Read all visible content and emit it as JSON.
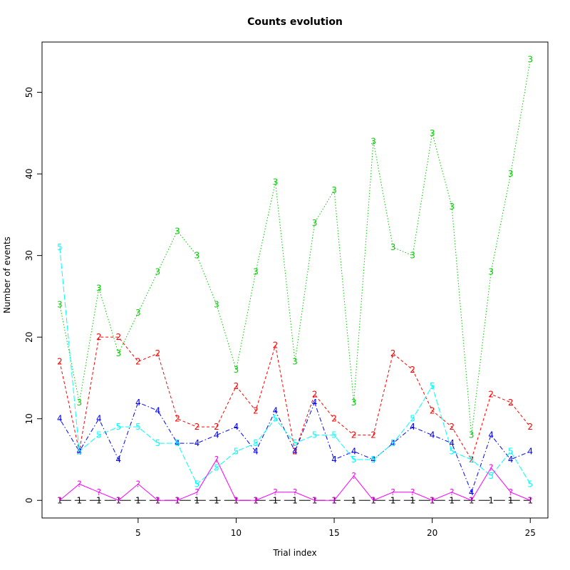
{
  "chart_data": {
    "type": "line",
    "title": "Counts evolution",
    "xlabel": "Trial index",
    "ylabel": "Number of events",
    "xlim": [
      0.1,
      25.9
    ],
    "ylim": [
      -2.16,
      56.16
    ],
    "x_ticks": [
      5,
      10,
      15,
      20,
      25
    ],
    "y_ticks": [
      0,
      10,
      20,
      30,
      40,
      50
    ],
    "x": [
      1,
      2,
      3,
      4,
      5,
      6,
      7,
      8,
      9,
      10,
      11,
      12,
      13,
      14,
      15,
      16,
      17,
      18,
      19,
      20,
      21,
      22,
      23,
      24,
      25
    ],
    "grid": false,
    "legend": "none",
    "series": [
      {
        "marker": "1",
        "color": "#000000",
        "dash": "16,5",
        "values": [
          0,
          0,
          0,
          0,
          0,
          0,
          0,
          0,
          0,
          0,
          0,
          0,
          0,
          0,
          0,
          0,
          0,
          0,
          0,
          0,
          0,
          0,
          0,
          0,
          0
        ]
      },
      {
        "marker": "2",
        "color": "#ff0000",
        "dash": "4,3",
        "values": [
          17,
          6,
          20,
          20,
          17,
          18,
          10,
          9,
          9,
          14,
          11,
          19,
          6,
          13,
          10,
          8,
          8,
          18,
          16,
          11,
          9,
          5,
          13,
          12,
          9
        ]
      },
      {
        "marker": "3",
        "color": "#00cd00",
        "dash": "1.5,2.5",
        "values": [
          24,
          12,
          26,
          18,
          23,
          28,
          33,
          30,
          24,
          16,
          28,
          39,
          17,
          34,
          38,
          12,
          44,
          31,
          30,
          45,
          36,
          8,
          28,
          40,
          54
        ]
      },
      {
        "marker": "4",
        "color": "#0000ff",
        "dash": "1.5,3,6,3",
        "values": [
          10,
          6,
          10,
          5,
          12,
          11,
          7,
          7,
          8,
          9,
          6,
          11,
          6,
          12,
          5,
          6,
          5,
          7,
          9,
          8,
          7,
          1,
          8,
          5,
          6
        ]
      },
      {
        "marker": "5",
        "color": "#00ffff",
        "dash": "8,3",
        "values": [
          31,
          6,
          8,
          9,
          9,
          7,
          7,
          2,
          4,
          6,
          7,
          10,
          7,
          8,
          8,
          5,
          5,
          7,
          10,
          14,
          6,
          5,
          3,
          6,
          2
        ]
      },
      {
        "marker": "?",
        "color": "#ff00ff",
        "dash": "0",
        "values": [
          0,
          2,
          1,
          0,
          2,
          0,
          0,
          1,
          5,
          0,
          0,
          1,
          1,
          0,
          0,
          3,
          0,
          1,
          1,
          0,
          1,
          0,
          4,
          1,
          0
        ]
      }
    ]
  }
}
